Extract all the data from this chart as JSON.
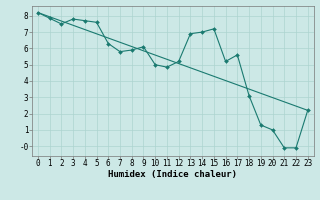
{
  "xlabel": "Humidex (Indice chaleur)",
  "ylabel": "",
  "background_color": "#cce8e6",
  "grid_color": "#add4d0",
  "line_color": "#1a7a70",
  "marker_color": "#1a7a70",
  "xlim": [
    -0.5,
    23.5
  ],
  "ylim": [
    -0.6,
    8.6
  ],
  "xticks": [
    0,
    1,
    2,
    3,
    4,
    5,
    6,
    7,
    8,
    9,
    10,
    11,
    12,
    13,
    14,
    15,
    16,
    17,
    18,
    19,
    20,
    21,
    22,
    23
  ],
  "yticks": [
    0,
    1,
    2,
    3,
    4,
    5,
    6,
    7,
    8
  ],
  "ytick_labels": [
    "-0",
    "1",
    "2",
    "3",
    "4",
    "5",
    "6",
    "7",
    "8"
  ],
  "series1_x": [
    0,
    1,
    2,
    3,
    4,
    5,
    6,
    7,
    8,
    9,
    10,
    11,
    12,
    13,
    14,
    15,
    16,
    17,
    18,
    19,
    20,
    21,
    22,
    23
  ],
  "series1_y": [
    8.2,
    7.85,
    7.5,
    7.8,
    7.7,
    7.6,
    6.3,
    5.8,
    5.9,
    6.1,
    5.0,
    4.85,
    5.2,
    6.9,
    7.0,
    7.2,
    5.2,
    5.6,
    3.1,
    1.3,
    1.0,
    -0.1,
    -0.1,
    2.2
  ],
  "series2_x": [
    0,
    23
  ],
  "series2_y": [
    8.2,
    2.2
  ],
  "fontsize_label": 6.5,
  "fontsize_tick": 5.5
}
